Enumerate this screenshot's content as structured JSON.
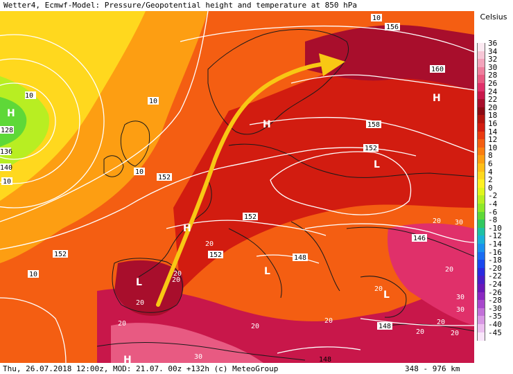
{
  "title": "Wetter4, Ecmwf-Model: Pressure/Geopotential height and temperature at 850 hPa",
  "footer": {
    "left": "Thu, 26.07.2018 12:00z, MOD: 21.07. 00z +132h (c) MeteoGroup",
    "scale": "348 - 976 km"
  },
  "legend": {
    "unit": "Celsius",
    "entries": [
      {
        "label": "36",
        "color": "#fbe9f1"
      },
      {
        "label": "34",
        "color": "#f7c6d6"
      },
      {
        "label": "32",
        "color": "#f3a3bb"
      },
      {
        "label": "30",
        "color": "#ee7e9d"
      },
      {
        "label": "28",
        "color": "#e85a82"
      },
      {
        "label": "26",
        "color": "#e0306a"
      },
      {
        "label": "24",
        "color": "#c8174a"
      },
      {
        "label": "22",
        "color": "#a80e2c"
      },
      {
        "label": "20",
        "color": "#8c0a14"
      },
      {
        "label": "18",
        "color": "#b4140e"
      },
      {
        "label": "16",
        "color": "#d21c10"
      },
      {
        "label": "14",
        "color": "#ea3a10"
      },
      {
        "label": "12",
        "color": "#f45e12"
      },
      {
        "label": "10",
        "color": "#fa7e10"
      },
      {
        "label": "8",
        "color": "#fd9e12"
      },
      {
        "label": "6",
        "color": "#ffbe18"
      },
      {
        "label": "4",
        "color": "#ffd81e"
      },
      {
        "label": "2",
        "color": "#fff024"
      },
      {
        "label": "0",
        "color": "#e0f51c"
      },
      {
        "label": "-2",
        "color": "#b8ee22"
      },
      {
        "label": "-4",
        "color": "#8ee82a"
      },
      {
        "label": "-6",
        "color": "#5ed838"
      },
      {
        "label": "-8",
        "color": "#32c860"
      },
      {
        "label": "-10",
        "color": "#1ec0a4"
      },
      {
        "label": "-12",
        "color": "#1ab0d8"
      },
      {
        "label": "-14",
        "color": "#1a90ee"
      },
      {
        "label": "-16",
        "color": "#1a6cf2"
      },
      {
        "label": "-18",
        "color": "#1a48ee"
      },
      {
        "label": "-20",
        "color": "#2a2ae0"
      },
      {
        "label": "-22",
        "color": "#4a1ec8"
      },
      {
        "label": "-24",
        "color": "#6a18b8"
      },
      {
        "label": "-26",
        "color": "#8a28c0"
      },
      {
        "label": "-28",
        "color": "#a848cc"
      },
      {
        "label": "-30",
        "color": "#c270d8"
      },
      {
        "label": "-35",
        "color": "#d898e4"
      },
      {
        "label": "-40",
        "color": "#ecc0f0"
      },
      {
        "label": "-45",
        "color": "#f8e6fa"
      }
    ]
  },
  "map": {
    "pressure_centers": [
      "H",
      "H",
      "H",
      "L",
      "L",
      "L",
      "L",
      "H",
      "H"
    ],
    "contour_labels": [
      "10",
      "156",
      "160",
      "158",
      "152",
      "152",
      "152",
      "152",
      "152",
      "148",
      "148",
      "148",
      "146",
      "128",
      "136",
      "140",
      "10",
      "10",
      "10",
      "10",
      "10",
      "20",
      "20",
      "20",
      "20",
      "20",
      "20",
      "20",
      "20",
      "20",
      "20",
      "30",
      "30",
      "30",
      "30",
      "20",
      "20",
      "20"
    ]
  }
}
